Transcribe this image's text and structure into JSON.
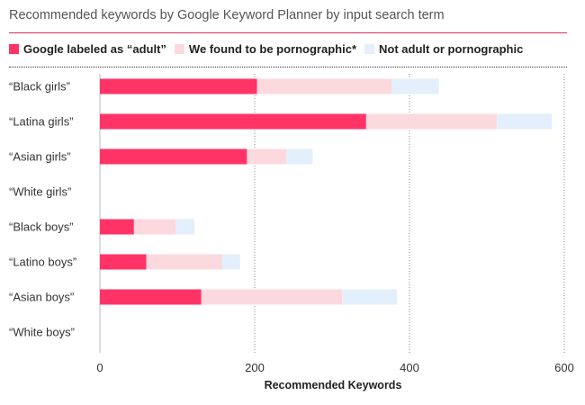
{
  "chart_data": {
    "type": "bar",
    "orientation": "horizontal",
    "stacked": true,
    "title": "Recommended keywords by Google Keyword Planner by input search term",
    "xlabel": "Recommended Keywords",
    "ylabel": "",
    "xlim": [
      0,
      600
    ],
    "xticks": [
      "0",
      "200",
      "400",
      "600"
    ],
    "grid": "vertical dotted",
    "legend_position": "top",
    "categories": [
      "“Black girls”",
      "“Latina girls”",
      "“Asian girls”",
      "“White girls”",
      "“Black boys”",
      "“Latino boys”",
      "“Asian boys”",
      "“White boys”"
    ],
    "series": [
      {
        "name": "Google labeled as “adult”",
        "color": "#ff3366",
        "values": [
          203,
          344,
          190,
          0,
          44,
          60,
          131,
          0
        ]
      },
      {
        "name": "We found to be pornographic*",
        "color": "#fcd9de",
        "values": [
          174,
          169,
          51,
          0,
          54,
          98,
          182,
          0
        ]
      },
      {
        "name": "Not adult or pornographic",
        "color": "#e3effb",
        "values": [
          61,
          71,
          34,
          0,
          24,
          23,
          71,
          0
        ]
      }
    ]
  }
}
